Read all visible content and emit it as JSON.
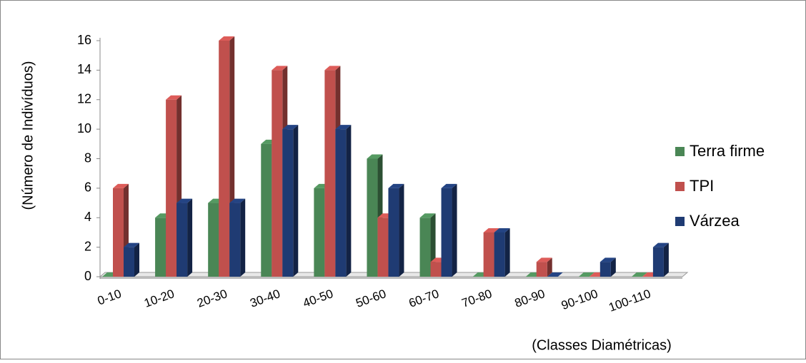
{
  "chart_data": {
    "type": "bar",
    "y_label": "(Número de Indivíduos)",
    "x_label": "(Classes Diamétricas)",
    "categories": [
      "0-10",
      "10-20",
      "20-30",
      "30-40",
      "40-50",
      "50-60",
      "60-70",
      "70-80",
      "80-90",
      "90-100",
      "100-110"
    ],
    "series": [
      {
        "name": "Terra firme",
        "color": "#4a8655",
        "values": [
          0,
          4,
          5,
          9,
          6,
          8,
          4,
          0,
          0,
          0,
          0
        ]
      },
      {
        "name": "TPI",
        "color": "#c0504d",
        "values": [
          6,
          12,
          16,
          14,
          14,
          4,
          1,
          3,
          1,
          0,
          0
        ]
      },
      {
        "name": "Várzea",
        "color": "#1f3b73",
        "values": [
          2,
          5,
          5,
          10,
          10,
          6,
          6,
          3,
          0,
          1,
          2
        ]
      }
    ],
    "ylim": [
      0,
      16
    ],
    "yticks": [
      0,
      2,
      4,
      6,
      8,
      10,
      12,
      14,
      16
    ],
    "legend": "right"
  }
}
